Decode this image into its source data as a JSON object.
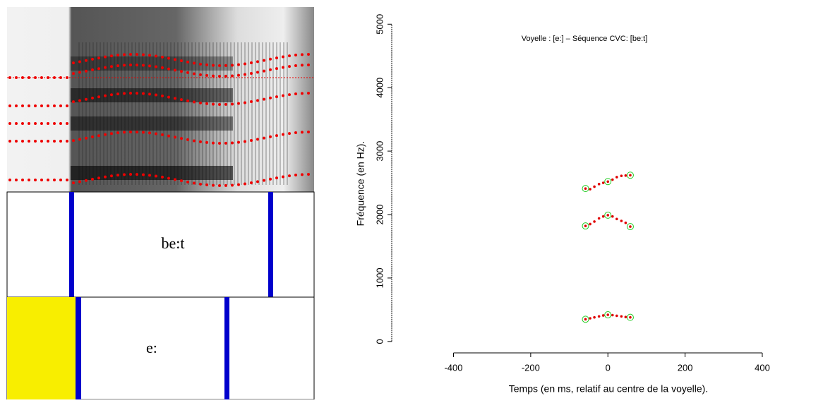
{
  "tiers": [
    {
      "label": "be:t"
    },
    {
      "label": "e:"
    }
  ],
  "chart_data": {
    "type": "scatter",
    "title": "Voyelle : [e:] – Séquence CVC: [be:t]",
    "x_label": "Temps (en ms, relatif au centre de la voyelle).",
    "y_label": "Fréquence (en Hz).",
    "xlim": [
      -560,
      550
    ],
    "ylim": [
      -180,
      5270
    ],
    "xticks": [
      -400,
      -200,
      0,
      200,
      400
    ],
    "yticks": [
      0,
      1000,
      2000,
      3000,
      4000,
      5000
    ],
    "series": [
      {
        "color": "#e00000",
        "marker": "dot",
        "x": [
          -58,
          -46,
          -35,
          -23,
          -12,
          0,
          12,
          23,
          35,
          46,
          58
        ],
        "values": [
          2410,
          2400,
          2440,
          2480,
          2500,
          2520,
          2550,
          2590,
          2610,
          2615,
          2620
        ]
      },
      {
        "color": "#e00000",
        "marker": "dot",
        "x": [
          -58,
          -46,
          -35,
          -23,
          -12,
          0,
          12,
          23,
          35,
          46,
          58
        ],
        "values": [
          1820,
          1850,
          1890,
          1940,
          1970,
          1990,
          1970,
          1930,
          1900,
          1870,
          1810
        ]
      },
      {
        "color": "#e00000",
        "marker": "dot",
        "x": [
          -58,
          -46,
          -35,
          -23,
          -12,
          0,
          12,
          23,
          35,
          46,
          58
        ],
        "values": [
          350,
          365,
          380,
          395,
          410,
          420,
          415,
          405,
          395,
          385,
          380
        ]
      },
      {
        "color": "#22cc22",
        "marker": "circle",
        "x": [
          -58,
          0,
          58
        ],
        "values": [
          2410,
          2520,
          2620
        ]
      },
      {
        "color": "#22cc22",
        "marker": "circle",
        "x": [
          -58,
          0,
          58
        ],
        "values": [
          1820,
          1990,
          1810
        ]
      },
      {
        "color": "#22cc22",
        "marker": "circle",
        "x": [
          -58,
          0,
          58
        ],
        "values": [
          350,
          420,
          380
        ]
      }
    ]
  }
}
